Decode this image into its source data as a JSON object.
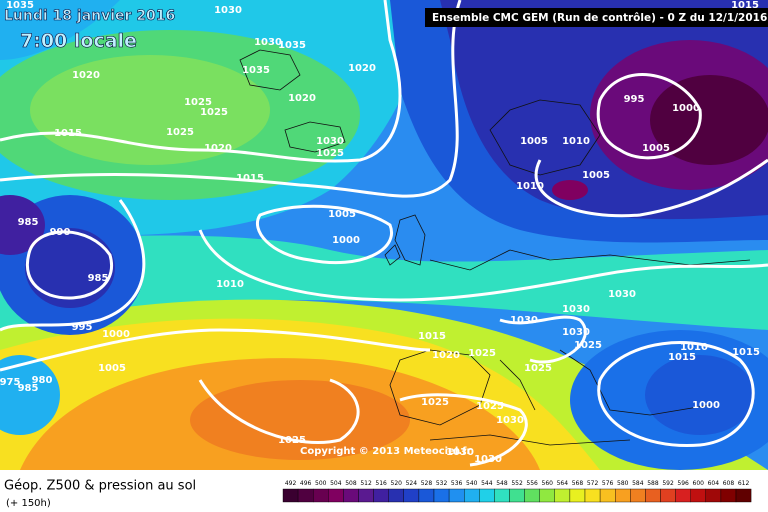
{
  "header": {
    "date": "Lundi 18 janvier 2016",
    "time": "7:00 locale",
    "model": "Ensemble CMC GEM (Run de contrôle) - 0 Z du 12/1/2016"
  },
  "footer": {
    "title": "Géop. Z500 & pression au sol",
    "lead": "(+ 150h)",
    "copyright": "Copyright © 2013 Meteociel.fr"
  },
  "legend": {
    "values": [
      492,
      496,
      500,
      504,
      508,
      512,
      516,
      520,
      524,
      528,
      532,
      536,
      540,
      544,
      548,
      552,
      556,
      560,
      564,
      568,
      572,
      576,
      580,
      584,
      588,
      592,
      596,
      600,
      604,
      608,
      612
    ],
    "colors": [
      "#3a0030",
      "#500040",
      "#680050",
      "#800060",
      "#6a0a7a",
      "#5a1a90",
      "#4020a0",
      "#2830b0",
      "#2040c8",
      "#1a58d8",
      "#1a70e8",
      "#2090f0",
      "#20b0f0",
      "#20d0e8",
      "#30e0c0",
      "#40e090",
      "#60e060",
      "#90e840",
      "#c0f030",
      "#e8f020",
      "#f8e020",
      "#f8c020",
      "#f8a020",
      "#f08020",
      "#e86020",
      "#e04020",
      "#d82020",
      "#c01010",
      "#a00808",
      "#800000",
      "#600000"
    ]
  },
  "isobar_labels": [
    "1035",
    "1030",
    "1030",
    "1035",
    "1020",
    "1035",
    "1020",
    "1025",
    "1025",
    "1025",
    "1015",
    "1020",
    "1020",
    "1030",
    "1025",
    "1015",
    "1005",
    "1010",
    "1005",
    "1010",
    "995",
    "1000",
    "1005",
    "1015",
    "985",
    "990",
    "1005",
    "1000",
    "985",
    "1010",
    "1030",
    "995",
    "1000",
    "1030",
    "1030",
    "1015",
    "1030",
    "1025",
    "1020",
    "1025",
    "1005",
    "1025",
    "1015",
    "1010",
    "1015",
    "975",
    "980",
    "985",
    "1025",
    "1025",
    "1030",
    "1000",
    "1025",
    "1030",
    "1030"
  ]
}
